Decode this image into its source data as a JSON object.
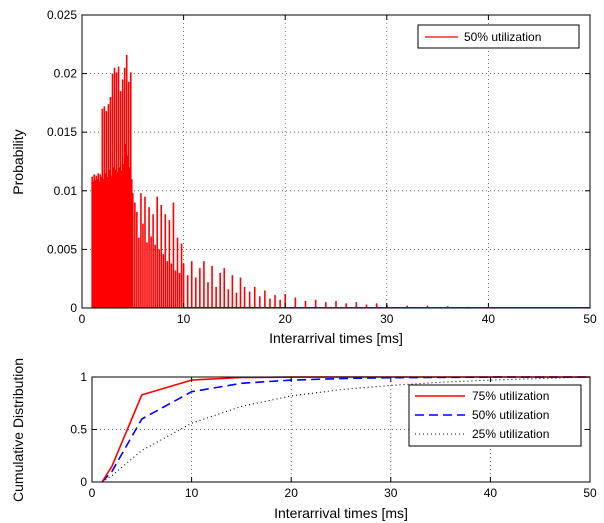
{
  "chart_data": [
    {
      "type": "bar",
      "title": "",
      "xlabel": "Interarrival times [ms]",
      "ylabel": "Probability",
      "xlim": [
        0,
        50
      ],
      "ylim": [
        0,
        0.025
      ],
      "xticks": [
        0,
        10,
        20,
        30,
        40,
        50
      ],
      "xtick_labels": [
        "0",
        "10",
        "20",
        "30",
        "40",
        "50"
      ],
      "yticks": [
        0,
        0.005,
        0.01,
        0.015,
        0.02,
        0.025
      ],
      "ytick_labels": [
        "0",
        "0.005",
        "0.01",
        "0.015",
        "0.02",
        "0.025"
      ],
      "grid": true,
      "legend_position": "top-right",
      "series": [
        {
          "name": "50% utilization",
          "color": "#ff0000",
          "x": [
            1.0,
            1.1,
            1.2,
            1.3,
            1.4,
            1.5,
            1.6,
            1.7,
            1.8,
            1.9,
            2.0,
            2.1,
            2.2,
            2.3,
            2.4,
            2.5,
            2.6,
            2.7,
            2.8,
            2.9,
            3.0,
            3.1,
            3.2,
            3.3,
            3.4,
            3.5,
            3.6,
            3.7,
            3.8,
            3.9,
            4.0,
            4.1,
            4.2,
            4.3,
            4.4,
            4.5,
            4.6,
            4.7,
            4.8,
            4.9,
            5.0,
            5.2,
            5.4,
            5.6,
            5.8,
            6.0,
            6.2,
            6.4,
            6.6,
            6.8,
            7.0,
            7.2,
            7.4,
            7.6,
            7.8,
            8.0,
            8.2,
            8.4,
            8.6,
            8.8,
            9.0,
            9.2,
            9.4,
            9.6,
            9.8,
            10.0,
            10.4,
            10.8,
            11.2,
            11.6,
            12.0,
            12.4,
            12.8,
            13.2,
            13.6,
            14.0,
            14.4,
            14.8,
            15.2,
            15.6,
            16.0,
            16.5,
            17.0,
            17.5,
            18.0,
            18.5,
            19.0,
            19.5,
            20.0,
            21.0,
            22.0,
            23.0,
            24.0,
            25.0,
            26.0,
            27.0,
            28.0,
            29.0,
            30.0,
            32.0,
            34.0,
            36.0,
            38.0,
            40.0,
            42.0,
            44.0,
            46.0,
            48.0,
            50.0
          ],
          "values": [
            0.0112,
            0.0108,
            0.0114,
            0.0109,
            0.0113,
            0.011,
            0.0115,
            0.0108,
            0.0114,
            0.0112,
            0.017,
            0.011,
            0.0172,
            0.0115,
            0.0168,
            0.0112,
            0.0174,
            0.0118,
            0.018,
            0.0113,
            0.02,
            0.012,
            0.0205,
            0.0118,
            0.0201,
            0.0116,
            0.0206,
            0.012,
            0.0185,
            0.0117,
            0.0195,
            0.0123,
            0.0205,
            0.014,
            0.0216,
            0.013,
            0.0193,
            0.012,
            0.0201,
            0.011,
            0.0098,
            0.009,
            0.0082,
            0.006,
            0.0098,
            0.0072,
            0.0095,
            0.0056,
            0.0086,
            0.0061,
            0.008,
            0.0054,
            0.0095,
            0.005,
            0.0088,
            0.0046,
            0.008,
            0.004,
            0.0075,
            0.0038,
            0.009,
            0.0032,
            0.006,
            0.003,
            0.0055,
            0.0038,
            0.0028,
            0.004,
            0.0026,
            0.0034,
            0.004,
            0.0022,
            0.0036,
            0.0018,
            0.003,
            0.0034,
            0.0016,
            0.0028,
            0.0013,
            0.0026,
            0.0018,
            0.0014,
            0.0018,
            0.001,
            0.0015,
            0.0008,
            0.0011,
            0.0007,
            0.0012,
            0.0009,
            0.0006,
            0.0007,
            0.0005,
            0.0006,
            0.0004,
            0.0005,
            0.0003,
            0.0004,
            0.0003,
            0.0002,
            0.0002,
            0.00015,
            0.0001,
            0.0001,
            8e-05,
            6e-05,
            5e-05,
            4e-05,
            3e-05
          ]
        }
      ]
    },
    {
      "type": "line",
      "title": "",
      "xlabel": "Interarrival times [ms]",
      "ylabel": "Cumulative Distribution",
      "xlim": [
        0,
        50
      ],
      "ylim": [
        0,
        1
      ],
      "xticks": [
        0,
        10,
        20,
        30,
        40,
        50
      ],
      "xtick_labels": [
        "0",
        "10",
        "20",
        "30",
        "40",
        "50"
      ],
      "yticks": [
        0,
        0.5,
        1
      ],
      "ytick_labels": [
        "0",
        "0.5",
        "1"
      ],
      "grid": true,
      "legend_position": "right",
      "series": [
        {
          "name": "75% utilization",
          "color": "#ff0000",
          "style": "solid",
          "x": [
            1,
            2,
            5,
            10,
            15,
            20,
            30,
            40,
            50
          ],
          "y": [
            0,
            0.15,
            0.83,
            0.97,
            0.995,
            0.999,
            1.0,
            1.0,
            1.0
          ]
        },
        {
          "name": "50% utilization",
          "color": "#0000ff",
          "style": "dashed",
          "x": [
            1,
            2,
            5,
            10,
            15,
            20,
            25,
            30,
            40,
            50
          ],
          "y": [
            0,
            0.1,
            0.6,
            0.86,
            0.94,
            0.97,
            0.985,
            0.993,
            0.999,
            1.0
          ]
        },
        {
          "name": "25% utilization",
          "color": "#000000",
          "style": "dotted",
          "x": [
            1,
            2,
            5,
            10,
            15,
            20,
            25,
            30,
            35,
            40,
            45,
            50
          ],
          "y": [
            0,
            0.06,
            0.3,
            0.56,
            0.72,
            0.82,
            0.88,
            0.92,
            0.95,
            0.97,
            0.985,
            1.0
          ]
        }
      ]
    }
  ]
}
